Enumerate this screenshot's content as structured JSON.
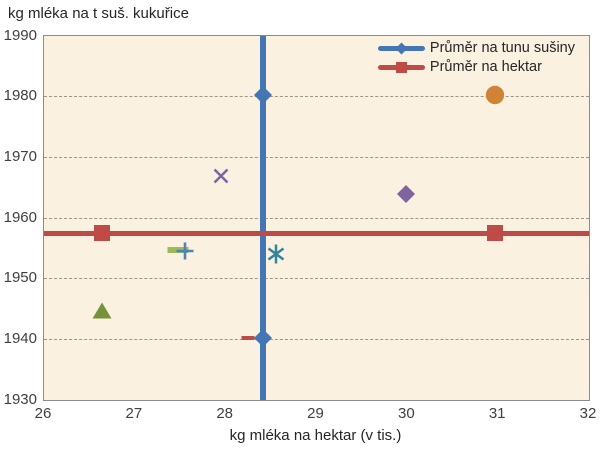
{
  "chart_data": {
    "type": "scatter",
    "title": "kg mléka na t suš. kukuřice",
    "xlabel": "kg mléka na hektar (v tis.)",
    "ylabel": "kg mléka na t suš. kukuřice",
    "xlim": [
      26,
      32
    ],
    "ylim": [
      1930,
      1990
    ],
    "xticks": [
      26,
      27,
      28,
      29,
      30,
      31,
      32
    ],
    "yticks": [
      1930,
      1940,
      1950,
      1960,
      1970,
      1980,
      1990
    ],
    "grid": "horizontal-dashed",
    "plot_bg_color": "#faf1e1",
    "gridline_color": "#9d958a",
    "mean_lines": {
      "vertical": {
        "x": 28.41,
        "color": "#4576b4",
        "label": "Průměr na tunu sušiny"
      },
      "horizontal": {
        "y": 1957.5,
        "color": "#bf4b47",
        "label": "Průměr na hektar"
      }
    },
    "points": [
      {
        "shape": "diamond",
        "color": "#4576b4",
        "x": 28.41,
        "y": 1980.2
      },
      {
        "shape": "diamond",
        "color": "#4576b4",
        "x": 28.41,
        "y": 1940.2
      },
      {
        "shape": "circle",
        "color": "#ce8434",
        "x": 30.96,
        "y": 1980.2
      },
      {
        "shape": "x",
        "color": "#8064a2",
        "x": 27.95,
        "y": 1966.9
      },
      {
        "shape": "diamond",
        "color": "#8064a2",
        "x": 29.98,
        "y": 1963.9
      },
      {
        "shape": "square",
        "color": "#bf4b47",
        "x": 26.64,
        "y": 1957.5
      },
      {
        "shape": "square",
        "color": "#bf4b47",
        "x": 30.96,
        "y": 1957.5
      },
      {
        "shape": "dash",
        "color": "#9bbb59",
        "x": 27.47,
        "y": 1954.8,
        "w": 21,
        "h": 6
      },
      {
        "shape": "plus",
        "color": "#4f81bd",
        "x": 27.55,
        "y": 1954.5
      },
      {
        "shape": "asterisk",
        "color": "#31859b",
        "x": 28.55,
        "y": 1954.1
      },
      {
        "shape": "triangle",
        "color": "#76933c",
        "x": 26.64,
        "y": 1944.7
      },
      {
        "shape": "dash",
        "color": "#bf4b47",
        "x": 28.25,
        "y": 1940.3,
        "w": 13,
        "h": 4
      }
    ],
    "legend_position": "top-right-inside"
  },
  "legend": {
    "items": [
      {
        "label": "Průměr na tunu sušiny",
        "color": "#4576b4",
        "marker": "diamond"
      },
      {
        "label": "Průměr na hektar",
        "color": "#bf4b47",
        "marker": "square"
      }
    ]
  }
}
